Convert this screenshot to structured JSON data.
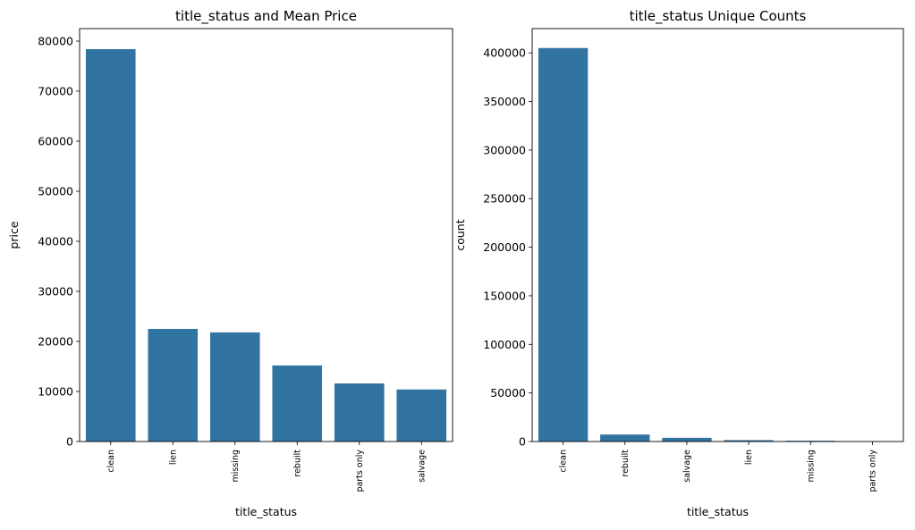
{
  "bar_color": "#3274a1",
  "chart_data": [
    {
      "type": "bar",
      "title": "title_status and Mean Price",
      "xlabel": "title_status",
      "ylabel": "price",
      "categories": [
        "clean",
        "lien",
        "missing",
        "rebuilt",
        "parts only",
        "salvage"
      ],
      "values": [
        78400,
        22500,
        21800,
        15200,
        11600,
        10400
      ],
      "ylim": [
        0,
        82500
      ],
      "yticks": [
        0,
        10000,
        20000,
        30000,
        40000,
        50000,
        60000,
        70000,
        80000
      ],
      "grid": false
    },
    {
      "type": "bar",
      "title": "title_status Unique Counts",
      "xlabel": "title_status",
      "ylabel": "count",
      "categories": [
        "clean",
        "rebuilt",
        "salvage",
        "lien",
        "missing",
        "parts only"
      ],
      "values": [
        405000,
        7200,
        3800,
        1400,
        800,
        200
      ],
      "ylim": [
        0,
        425000
      ],
      "yticks": [
        0,
        50000,
        100000,
        150000,
        200000,
        250000,
        300000,
        350000,
        400000
      ],
      "grid": false
    }
  ]
}
